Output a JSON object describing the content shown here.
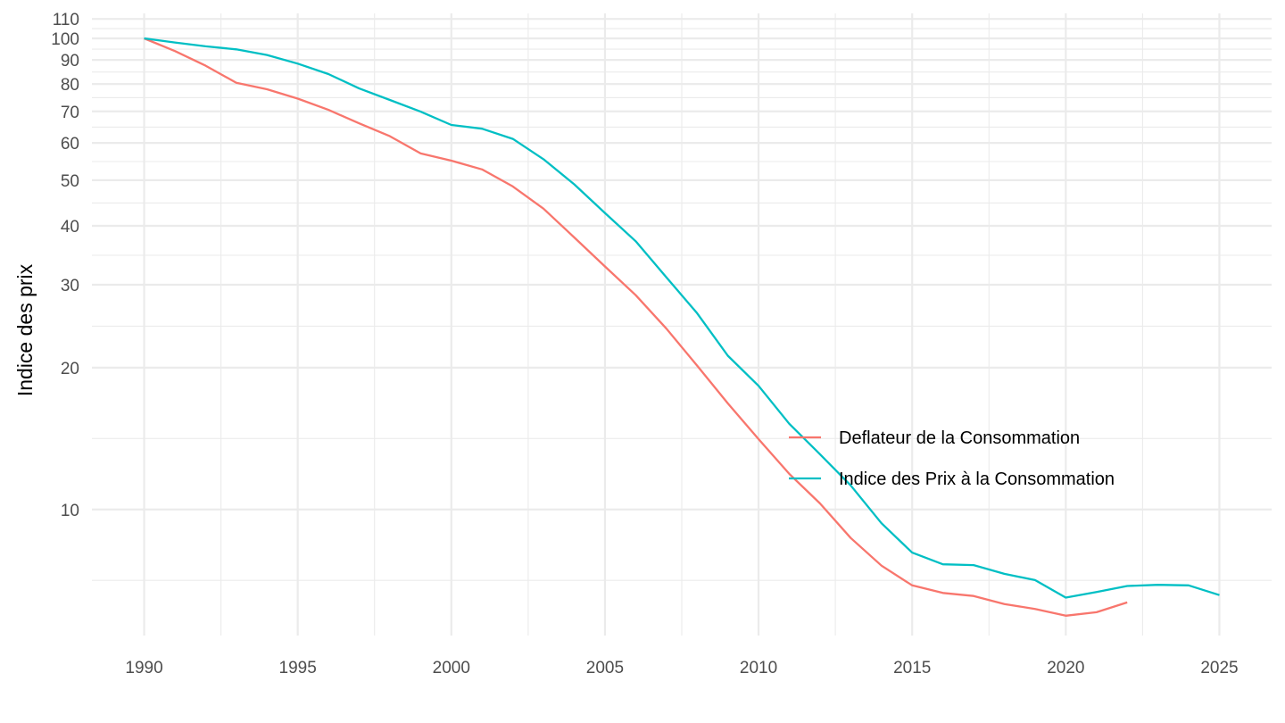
{
  "chart_data": {
    "type": "line",
    "title": "",
    "xlabel": "",
    "ylabel": "Indice des prix",
    "y_scale": "log",
    "xlim": [
      1988.3,
      2026.7
    ],
    "ylim": [
      5.4,
      113
    ],
    "x_ticks": [
      1990,
      1995,
      2000,
      2005,
      2010,
      2015,
      2020,
      2025
    ],
    "x_tick_labels": [
      "1990",
      "1995",
      "2000",
      "2005",
      "2010",
      "2015",
      "2020",
      "2025"
    ],
    "y_ticks": [
      10,
      20,
      30,
      40,
      50,
      60,
      70,
      80,
      90,
      100,
      110
    ],
    "y_tick_labels": [
      "10",
      "20",
      "30",
      "40",
      "50",
      "60",
      "70",
      "80",
      "90",
      "100",
      "110"
    ],
    "grid": true,
    "legend_position": "right-center",
    "series": [
      {
        "name": "Deflateur de la Consommation",
        "color": "#F8766D",
        "x": [
          1990,
          1991,
          1992,
          1993,
          1994,
          1995,
          1996,
          1997,
          1998,
          1999,
          2000,
          2001,
          2002,
          2003,
          2004,
          2005,
          2006,
          2007,
          2008,
          2009,
          2010,
          2011,
          2012,
          2013,
          2014,
          2015,
          2016,
          2017,
          2018,
          2019,
          2020,
          2021,
          2022
        ],
        "y": [
          100,
          94,
          87.5,
          80.5,
          78,
          74.5,
          70.5,
          66,
          62,
          57,
          55,
          52.7,
          48.5,
          43.5,
          37.8,
          32.8,
          28.5,
          24.2,
          20.2,
          16.8,
          14.1,
          11.9,
          10.3,
          8.7,
          7.6,
          6.9,
          6.65,
          6.55,
          6.3,
          6.15,
          5.95,
          6.05,
          6.35
        ]
      },
      {
        "name": "Indice des Prix à la Consommation",
        "color": "#00BFC4",
        "x": [
          1990,
          1991,
          1992,
          1993,
          1994,
          1995,
          1996,
          1997,
          1998,
          1999,
          2000,
          2001,
          2002,
          2003,
          2004,
          2005,
          2006,
          2007,
          2008,
          2009,
          2010,
          2011,
          2012,
          2013,
          2014,
          2015,
          2016,
          2017,
          2018,
          2019,
          2020,
          2021,
          2022,
          2023,
          2024,
          2025
        ],
        "y": [
          100,
          98,
          96.2,
          94.8,
          92.2,
          88.4,
          84,
          78.3,
          74,
          69.9,
          65.5,
          64.3,
          61.2,
          55.4,
          49,
          42.6,
          37.1,
          31.1,
          26.1,
          21.2,
          18.3,
          15.2,
          13.1,
          11.25,
          9.35,
          8.1,
          7.65,
          7.62,
          7.3,
          7.08,
          6.5,
          6.68,
          6.88,
          6.92,
          6.9,
          6.58
        ]
      }
    ]
  }
}
